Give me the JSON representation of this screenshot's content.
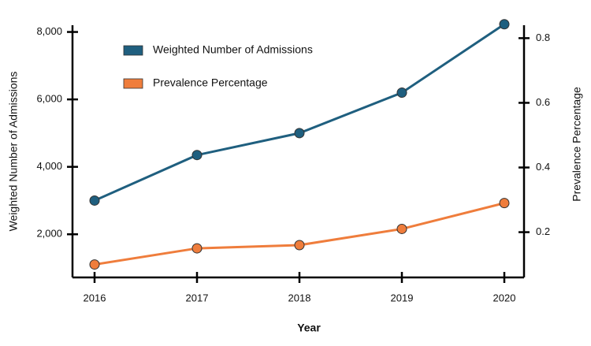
{
  "chart_data": {
    "type": "line",
    "x_label": "Year",
    "y_label": "Weighted Number of Admissions",
    "y2_label": "Prevalence Percentage",
    "categories": [
      "2016",
      "2017",
      "2018",
      "2019",
      "2020"
    ],
    "series": [
      {
        "name": "Weighted Number of Admissions",
        "color": "#1f5f7f",
        "values": [
          3000,
          4350,
          5000,
          6200,
          8230
        ]
      },
      {
        "name": "Prevalence Percentage",
        "color": "#ef7d3c",
        "axis": "y2",
        "values": [
          0.1,
          0.15,
          0.16,
          0.21,
          0.29
        ]
      }
    ],
    "ylim": [
      720,
      8200
    ],
    "yticks": [
      {
        "value": 2000,
        "label": "2,000"
      },
      {
        "value": 4000,
        "label": "4,000"
      },
      {
        "value": 6000,
        "label": "6,000"
      },
      {
        "value": 8000,
        "label": "8,000"
      }
    ],
    "y2lim": [
      0.06,
      0.84
    ],
    "y2ticks": [
      0.2,
      0.4,
      0.6,
      0.8
    ],
    "legend": "top-left",
    "grid": false
  }
}
